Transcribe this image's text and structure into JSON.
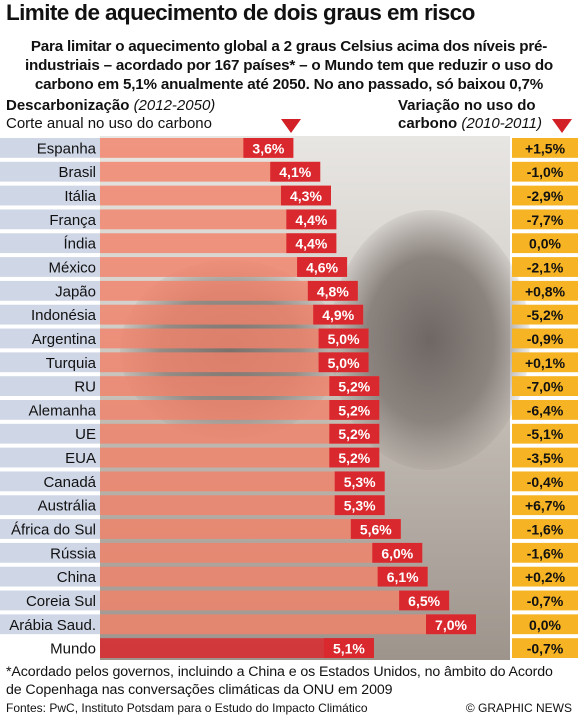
{
  "title": "Limite de aquecimento de dois graus em risco",
  "subtitle": "Para limitar o aquecimento global a 2 graus Celsius acima dos níveis pré-industriais – acordado por 167 países* – o Mundo tem que reduzir o uso do carbono em 5,1% anualmente até 2050. No ano passado, só baixou 0,7%",
  "left_header": {
    "bold": "Descarbonização",
    "period": "(2012-2050)",
    "line2": "Corte anual no uso do carbono"
  },
  "right_header": {
    "line1": "Variação no uso do",
    "line2_bold": "carbono",
    "period": "(2010-2011)"
  },
  "footnote": "*Acordado pelos governos, incluindo a China e os Estados Unidos, no âmbito do Acordo de Copenhaga nas conversações climáticas da ONU em 2009",
  "sources": "Fontes: PwC, Instituto Potsdam para o Estudo do Impacto Climático",
  "credit": "© GRAPHIC NEWS",
  "colors": {
    "bar": "#f2826a",
    "bar_world": "#d9282e",
    "label_bg": "#d9282e",
    "change_bg": "#f6b324",
    "row_band": "#cfd6e6",
    "triangle": "#d32027"
  },
  "chart_data": {
    "type": "bar",
    "orientation": "horizontal",
    "categories": [
      "Espanha",
      "Brasil",
      "Itália",
      "França",
      "Índia",
      "México",
      "Japão",
      "Indonésia",
      "Argentina",
      "Turquia",
      "RU",
      "Alemanha",
      "UE",
      "EUA",
      "Canadá",
      "Austrália",
      "África do Sul",
      "Rússia",
      "China",
      "Coreia Sul",
      "Arábia Saud.",
      "Mundo"
    ],
    "series": [
      {
        "values": [
          3.6,
          4.1,
          4.3,
          4.4,
          4.4,
          4.6,
          4.8,
          4.9,
          5.0,
          5.0,
          5.2,
          5.2,
          5.2,
          5.2,
          5.3,
          5.3,
          5.6,
          6.0,
          6.1,
          6.5,
          7.0,
          5.1
        ],
        "labels": [
          "3,6%",
          "4,1%",
          "4,3%",
          "4,4%",
          "4,4%",
          "4,6%",
          "4,8%",
          "4,9%",
          "5,0%",
          "5,0%",
          "5,2%",
          "5,2%",
          "5,2%",
          "5,2%",
          "5,3%",
          "5,3%",
          "5,6%",
          "6,0%",
          "6,1%",
          "6,5%",
          "7,0%",
          "5,1%"
        ]
      }
    ],
    "change_2010_2011": [
      "+1,5%",
      "-1,0%",
      "-2,9%",
      "-7,7%",
      "0,0%",
      "-2,1%",
      "+0,8%",
      "-5,2%",
      "-0,9%",
      "+0,1%",
      "-7,0%",
      "-6,4%",
      "-5,1%",
      "-3,5%",
      "-0,4%",
      "+6,7%",
      "-1,6%",
      "-1,6%",
      "+0,2%",
      "-0,7%",
      "0,0%",
      "-0,7%"
    ],
    "xlim": [
      0,
      7.0
    ],
    "grid": false
  }
}
